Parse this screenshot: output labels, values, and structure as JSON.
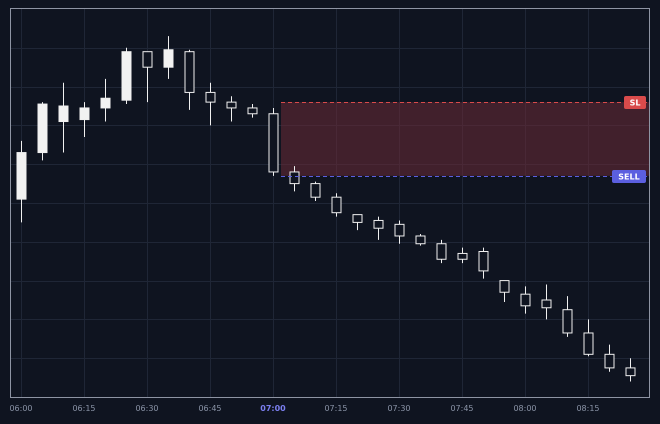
{
  "chart_data": {
    "type": "candlestick",
    "x_ticks": [
      "06:00",
      "06:15",
      "06:30",
      "06:45",
      "07:00",
      "07:15",
      "07:30",
      "07:45",
      "08:00",
      "08:15"
    ],
    "x_tick_highlight": "07:00",
    "candles": [
      {
        "o": 41.0,
        "h": 56.0,
        "l": 35.0,
        "c": 53.0
      },
      {
        "o": 53.0,
        "h": 66.0,
        "l": 51.0,
        "c": 65.5
      },
      {
        "o": 61.0,
        "h": 71.0,
        "l": 53.0,
        "c": 65.0
      },
      {
        "o": 61.5,
        "h": 66.0,
        "l": 57.0,
        "c": 64.5
      },
      {
        "o": 64.5,
        "h": 72.0,
        "l": 61.0,
        "c": 67.0
      },
      {
        "o": 66.5,
        "h": 80.0,
        "l": 65.5,
        "c": 79.0
      },
      {
        "o": 79.0,
        "h": 79.0,
        "l": 66.0,
        "c": 75.0
      },
      {
        "o": 75.0,
        "h": 83.0,
        "l": 72.0,
        "c": 79.5
      },
      {
        "o": 79.0,
        "h": 79.5,
        "l": 64.0,
        "c": 68.5
      },
      {
        "o": 68.5,
        "h": 71.0,
        "l": 60.0,
        "c": 66.0
      },
      {
        "o": 66.0,
        "h": 67.5,
        "l": 61.0,
        "c": 64.5
      },
      {
        "o": 64.5,
        "h": 65.5,
        "l": 62.0,
        "c": 63.0
      },
      {
        "o": 63.0,
        "h": 64.5,
        "l": 47.0,
        "c": 48.0
      },
      {
        "o": 48.0,
        "h": 49.5,
        "l": 43.0,
        "c": 45.0
      },
      {
        "o": 45.0,
        "h": 45.5,
        "l": 40.5,
        "c": 41.5
      },
      {
        "o": 41.5,
        "h": 42.5,
        "l": 36.5,
        "c": 37.5
      },
      {
        "o": 37.0,
        "h": 37.0,
        "l": 33.0,
        "c": 35.0
      },
      {
        "o": 35.5,
        "h": 36.5,
        "l": 30.5,
        "c": 33.5
      },
      {
        "o": 34.5,
        "h": 35.5,
        "l": 29.5,
        "c": 31.5
      },
      {
        "o": 31.5,
        "h": 32.0,
        "l": 29.0,
        "c": 29.5
      },
      {
        "o": 29.5,
        "h": 30.5,
        "l": 24.5,
        "c": 25.5
      },
      {
        "o": 27.0,
        "h": 28.5,
        "l": 24.5,
        "c": 25.5
      },
      {
        "o": 27.5,
        "h": 28.5,
        "l": 20.5,
        "c": 22.5
      },
      {
        "o": 20.0,
        "h": 20.0,
        "l": 14.5,
        "c": 17.0
      },
      {
        "o": 16.5,
        "h": 18.5,
        "l": 11.5,
        "c": 13.5
      },
      {
        "o": 15.0,
        "h": 19.0,
        "l": 10.0,
        "c": 13.0
      },
      {
        "o": 12.5,
        "h": 16.0,
        "l": 5.5,
        "c": 6.5
      },
      {
        "o": 6.5,
        "h": 10.0,
        "l": 0.5,
        "c": 1.0
      },
      {
        "o": 1.0,
        "h": 3.5,
        "l": -3.5,
        "c": -2.5
      },
      {
        "o": -2.5,
        "h": 0.0,
        "l": -6.0,
        "c": -4.5
      }
    ],
    "levels": [
      {
        "label": "SL",
        "value": 66.0,
        "color": "#d94b4b"
      },
      {
        "label": "SELL",
        "value": 47.0,
        "color": "#5b5fe0"
      }
    ],
    "zone_color": "#6b2a36",
    "ylim": [
      -10,
      90
    ],
    "grid": true,
    "colors": {
      "bull_fill": "#f2f2f2",
      "bear_fill": "#0f1420",
      "candle_stroke": "#f0f0f0",
      "axis_text": "#8a93a6",
      "highlight_text": "#7b7ff0",
      "grid": "#1f2636",
      "frame": "#8e94a3"
    }
  }
}
